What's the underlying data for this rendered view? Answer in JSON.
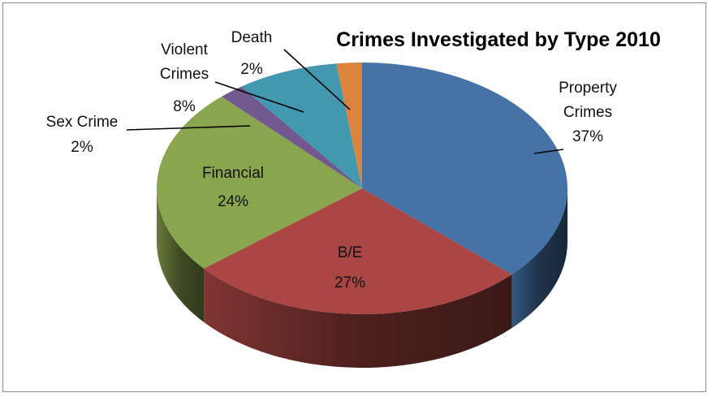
{
  "chart_data": {
    "type": "pie",
    "title": "Crimes Investigated by Type 2010",
    "slices": [
      {
        "name": "Property Crimes",
        "label_lines": [
          "Property",
          "Crimes"
        ],
        "value": 37,
        "value_label": "37%",
        "color": "#4572A7"
      },
      {
        "name": "B/E",
        "label_lines": [
          "B/E"
        ],
        "value": 27,
        "value_label": "27%",
        "color": "#AA4643"
      },
      {
        "name": "Financial",
        "label_lines": [
          "Financial"
        ],
        "value": 24,
        "value_label": "24%",
        "color": "#89A54E"
      },
      {
        "name": "Sex Crime",
        "label_lines": [
          "Sex Crime"
        ],
        "value": 2,
        "value_label": "2%",
        "color": "#71588F"
      },
      {
        "name": "Violent Crimes",
        "label_lines": [
          "Violent",
          "Crimes"
        ],
        "value": 8,
        "value_label": "8%",
        "color": "#4198AF"
      },
      {
        "name": "Death",
        "label_lines": [
          "Death"
        ],
        "value": 2,
        "value_label": "2%",
        "color": "#DB843D"
      }
    ],
    "style": "3d-pie",
    "legend": "none"
  }
}
